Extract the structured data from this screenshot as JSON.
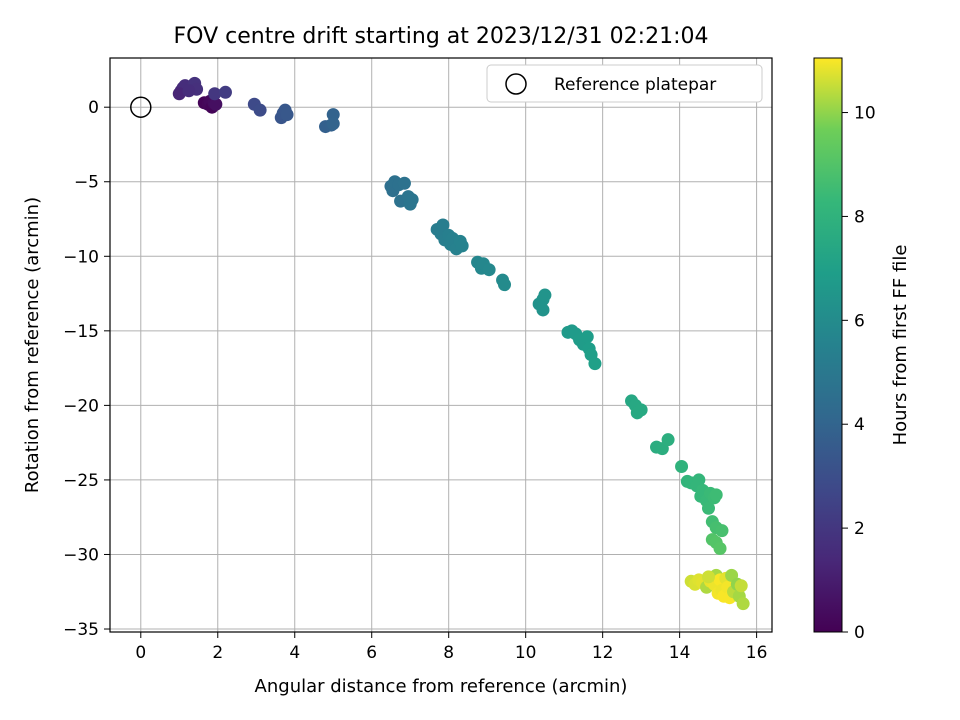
{
  "chart_data": {
    "type": "scatter",
    "title": "FOV centre drift starting at 2023/12/31 02:21:04",
    "xlabel": "Angular distance from reference (arcmin)",
    "ylabel": "Rotation from reference (arcmin)",
    "xlim": [
      -0.8,
      16.4
    ],
    "ylim": [
      -35.2,
      3.3
    ],
    "xticks": [
      0,
      2,
      4,
      6,
      8,
      10,
      12,
      14,
      16
    ],
    "yticks": [
      0,
      -5,
      -10,
      -15,
      -20,
      -25,
      -30,
      -35
    ],
    "grid": true,
    "legend": {
      "position": "top-right",
      "entries": [
        "Reference platepar"
      ]
    },
    "reference_point": {
      "x": 0,
      "y": 0
    },
    "colorbar": {
      "label": "Hours from first FF file",
      "min": 0,
      "max": 11.05,
      "ticks": [
        0,
        2,
        4,
        6,
        8,
        10
      ],
      "colormap": "viridis"
    },
    "points": [
      {
        "x": 1.05,
        "y": 1.1,
        "t": 1.4
      },
      {
        "x": 1.1,
        "y": 1.3,
        "t": 1.5
      },
      {
        "x": 1.15,
        "y": 1.45,
        "t": 1.6
      },
      {
        "x": 1.0,
        "y": 0.9,
        "t": 1.3
      },
      {
        "x": 1.35,
        "y": 1.35,
        "t": 1.7
      },
      {
        "x": 1.4,
        "y": 1.6,
        "t": 1.8
      },
      {
        "x": 1.45,
        "y": 1.2,
        "t": 1.7
      },
      {
        "x": 1.25,
        "y": 1.1,
        "t": 1.6
      },
      {
        "x": 1.65,
        "y": 0.3,
        "t": 0.1
      },
      {
        "x": 1.75,
        "y": 0.2,
        "t": 0.2
      },
      {
        "x": 1.8,
        "y": 0.4,
        "t": 0.3
      },
      {
        "x": 1.85,
        "y": 0.0,
        "t": 0.1
      },
      {
        "x": 1.9,
        "y": 0.3,
        "t": 0.4
      },
      {
        "x": 1.95,
        "y": 0.2,
        "t": 0.5
      },
      {
        "x": 1.92,
        "y": 0.9,
        "t": 2.0
      },
      {
        "x": 2.2,
        "y": 1.0,
        "t": 2.2
      },
      {
        "x": 2.95,
        "y": 0.2,
        "t": 2.8
      },
      {
        "x": 3.1,
        "y": -0.2,
        "t": 2.9
      },
      {
        "x": 3.65,
        "y": -0.7,
        "t": 3.3
      },
      {
        "x": 3.7,
        "y": -0.4,
        "t": 3.35
      },
      {
        "x": 3.75,
        "y": -0.2,
        "t": 3.4
      },
      {
        "x": 3.8,
        "y": -0.5,
        "t": 3.45
      },
      {
        "x": 4.8,
        "y": -1.3,
        "t": 3.8
      },
      {
        "x": 4.95,
        "y": -1.2,
        "t": 3.85
      },
      {
        "x": 5.0,
        "y": -0.5,
        "t": 3.9
      },
      {
        "x": 5.0,
        "y": -1.1,
        "t": 3.95
      },
      {
        "x": 6.5,
        "y": -5.3,
        "t": 4.5
      },
      {
        "x": 6.55,
        "y": -5.6,
        "t": 4.55
      },
      {
        "x": 6.6,
        "y": -5.0,
        "t": 4.6
      },
      {
        "x": 6.7,
        "y": -5.2,
        "t": 4.6
      },
      {
        "x": 6.75,
        "y": -6.3,
        "t": 4.7
      },
      {
        "x": 6.85,
        "y": -5.1,
        "t": 4.7
      },
      {
        "x": 6.95,
        "y": -6.0,
        "t": 4.8
      },
      {
        "x": 7.0,
        "y": -6.5,
        "t": 4.85
      },
      {
        "x": 7.05,
        "y": -6.2,
        "t": 4.85
      },
      {
        "x": 7.7,
        "y": -8.2,
        "t": 5.2
      },
      {
        "x": 7.8,
        "y": -8.5,
        "t": 5.25
      },
      {
        "x": 7.85,
        "y": -7.9,
        "t": 5.25
      },
      {
        "x": 7.9,
        "y": -8.9,
        "t": 5.3
      },
      {
        "x": 8.0,
        "y": -8.6,
        "t": 5.35
      },
      {
        "x": 8.05,
        "y": -9.2,
        "t": 5.4
      },
      {
        "x": 8.1,
        "y": -8.8,
        "t": 5.4
      },
      {
        "x": 8.2,
        "y": -9.5,
        "t": 5.45
      },
      {
        "x": 8.3,
        "y": -9.0,
        "t": 5.5
      },
      {
        "x": 8.35,
        "y": -9.3,
        "t": 5.5
      },
      {
        "x": 8.75,
        "y": -10.4,
        "t": 5.7
      },
      {
        "x": 8.85,
        "y": -10.8,
        "t": 5.75
      },
      {
        "x": 8.9,
        "y": -10.5,
        "t": 5.75
      },
      {
        "x": 9.05,
        "y": -10.9,
        "t": 5.8
      },
      {
        "x": 9.4,
        "y": -11.6,
        "t": 5.9
      },
      {
        "x": 9.45,
        "y": -11.9,
        "t": 5.95
      },
      {
        "x": 10.35,
        "y": -13.2,
        "t": 6.3
      },
      {
        "x": 10.45,
        "y": -13.6,
        "t": 6.35
      },
      {
        "x": 10.45,
        "y": -12.9,
        "t": 6.35
      },
      {
        "x": 10.5,
        "y": -12.6,
        "t": 6.4
      },
      {
        "x": 11.1,
        "y": -15.1,
        "t": 6.7
      },
      {
        "x": 11.2,
        "y": -15.0,
        "t": 6.7
      },
      {
        "x": 11.3,
        "y": -15.2,
        "t": 6.75
      },
      {
        "x": 11.4,
        "y": -15.6,
        "t": 6.8
      },
      {
        "x": 11.5,
        "y": -15.9,
        "t": 6.8
      },
      {
        "x": 11.6,
        "y": -15.4,
        "t": 6.85
      },
      {
        "x": 11.65,
        "y": -16.2,
        "t": 6.9
      },
      {
        "x": 11.7,
        "y": -16.6,
        "t": 6.95
      },
      {
        "x": 11.8,
        "y": -17.2,
        "t": 7.0
      },
      {
        "x": 12.75,
        "y": -19.7,
        "t": 7.4
      },
      {
        "x": 12.85,
        "y": -20.0,
        "t": 7.45
      },
      {
        "x": 12.9,
        "y": -20.5,
        "t": 7.5
      },
      {
        "x": 13.0,
        "y": -20.3,
        "t": 7.5
      },
      {
        "x": 13.4,
        "y": -22.8,
        "t": 7.7
      },
      {
        "x": 13.55,
        "y": -22.9,
        "t": 7.75
      },
      {
        "x": 13.7,
        "y": -22.3,
        "t": 7.8
      },
      {
        "x": 14.05,
        "y": -24.1,
        "t": 8.0
      },
      {
        "x": 14.2,
        "y": -25.1,
        "t": 8.1
      },
      {
        "x": 14.3,
        "y": -25.2,
        "t": 8.15
      },
      {
        "x": 14.45,
        "y": -25.4,
        "t": 8.2
      },
      {
        "x": 14.5,
        "y": -25.0,
        "t": 8.2
      },
      {
        "x": 14.55,
        "y": -26.1,
        "t": 8.3
      },
      {
        "x": 14.6,
        "y": -25.7,
        "t": 8.3
      },
      {
        "x": 14.7,
        "y": -26.4,
        "t": 8.35
      },
      {
        "x": 14.75,
        "y": -26.9,
        "t": 8.4
      },
      {
        "x": 14.8,
        "y": -25.9,
        "t": 8.4
      },
      {
        "x": 14.9,
        "y": -26.2,
        "t": 8.45
      },
      {
        "x": 14.95,
        "y": -26.0,
        "t": 8.5
      },
      {
        "x": 14.85,
        "y": -27.8,
        "t": 8.6
      },
      {
        "x": 14.95,
        "y": -28.2,
        "t": 8.7
      },
      {
        "x": 15.1,
        "y": -28.4,
        "t": 8.75
      },
      {
        "x": 14.85,
        "y": -29.0,
        "t": 9.0
      },
      {
        "x": 14.95,
        "y": -29.2,
        "t": 9.05
      },
      {
        "x": 15.05,
        "y": -29.6,
        "t": 9.1
      },
      {
        "x": 14.3,
        "y": -31.8,
        "t": 10.6
      },
      {
        "x": 14.4,
        "y": -32.0,
        "t": 10.7
      },
      {
        "x": 14.5,
        "y": -31.7,
        "t": 10.75
      },
      {
        "x": 14.6,
        "y": -31.9,
        "t": 10.8
      },
      {
        "x": 14.7,
        "y": -32.2,
        "t": 10.3
      },
      {
        "x": 14.8,
        "y": -31.8,
        "t": 10.85
      },
      {
        "x": 14.9,
        "y": -32.0,
        "t": 10.9
      },
      {
        "x": 14.95,
        "y": -31.4,
        "t": 10.2
      },
      {
        "x": 15.0,
        "y": -32.6,
        "t": 10.95
      },
      {
        "x": 15.05,
        "y": -31.7,
        "t": 11.0
      },
      {
        "x": 15.1,
        "y": -32.4,
        "t": 10.9
      },
      {
        "x": 15.15,
        "y": -32.8,
        "t": 11.0
      },
      {
        "x": 15.2,
        "y": -31.6,
        "t": 10.8
      },
      {
        "x": 15.25,
        "y": -32.2,
        "t": 10.95
      },
      {
        "x": 15.3,
        "y": -32.9,
        "t": 11.0
      },
      {
        "x": 15.35,
        "y": -31.4,
        "t": 10.1
      },
      {
        "x": 15.4,
        "y": -32.5,
        "t": 10.4
      },
      {
        "x": 15.5,
        "y": -32.0,
        "t": 10.0
      },
      {
        "x": 15.55,
        "y": -32.8,
        "t": 10.2
      },
      {
        "x": 15.65,
        "y": -33.3,
        "t": 10.3
      },
      {
        "x": 15.6,
        "y": -32.1,
        "t": 10.5
      },
      {
        "x": 14.75,
        "y": -31.5,
        "t": 10.6
      }
    ]
  }
}
